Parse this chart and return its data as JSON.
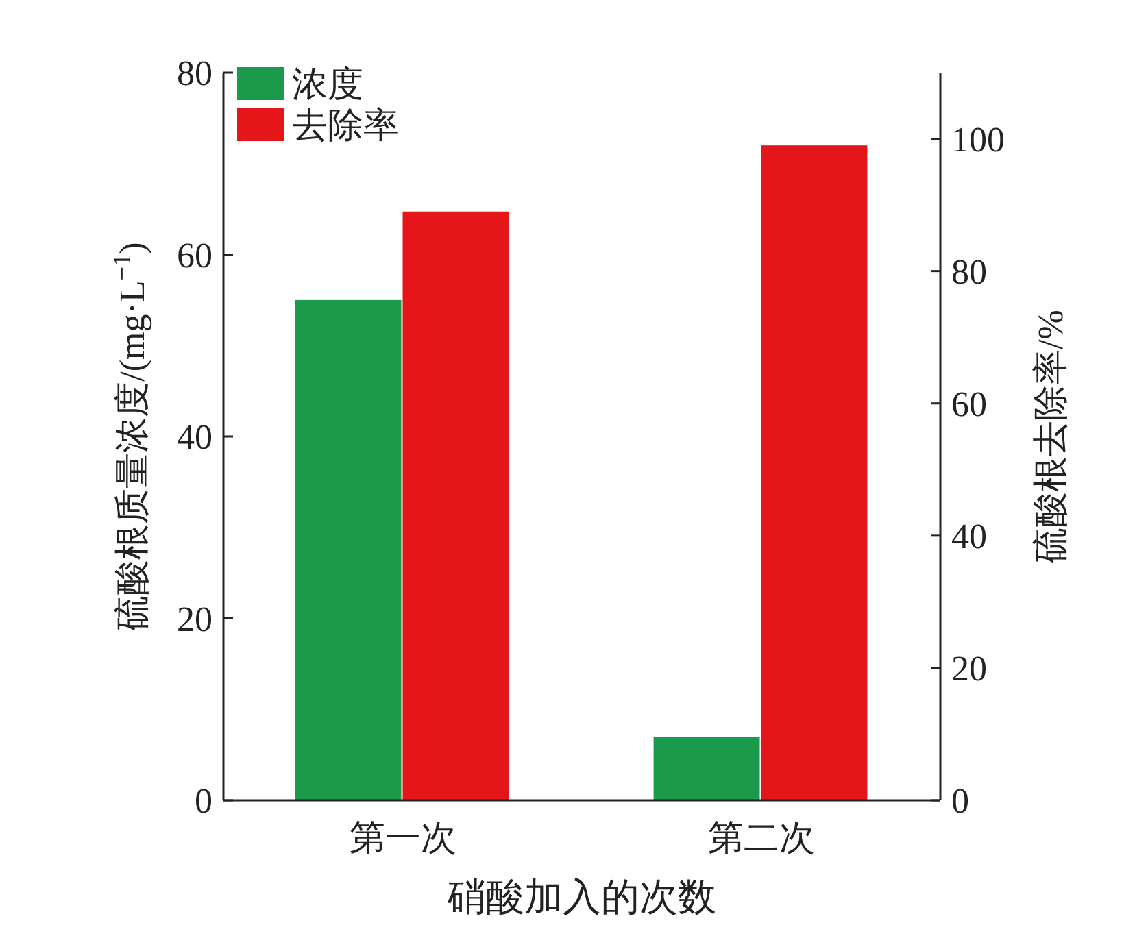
{
  "chart_data": {
    "type": "bar",
    "categories": [
      "第一次",
      "第二次"
    ],
    "series": [
      {
        "name": "浓度",
        "color": "#1a9a4a",
        "values": [
          55,
          7
        ]
      },
      {
        "name": "去除率",
        "color": "#e5161a",
        "values": [
          89,
          99
        ],
        "axis": "y2"
      }
    ],
    "xlabel": "硝酸加入的次数",
    "ylabel": "硫酸根质量浓度/(mg·L$^{−1}$)",
    "y2label": "硫酸根去除率/%",
    "ylim": [
      0,
      80
    ],
    "yticks": [
      0,
      20,
      40,
      60,
      80
    ],
    "y2lim": [
      0,
      110
    ],
    "y2ticks": [
      0,
      20,
      40,
      60,
      80,
      100
    ],
    "legend": "top left",
    "grid": false
  }
}
